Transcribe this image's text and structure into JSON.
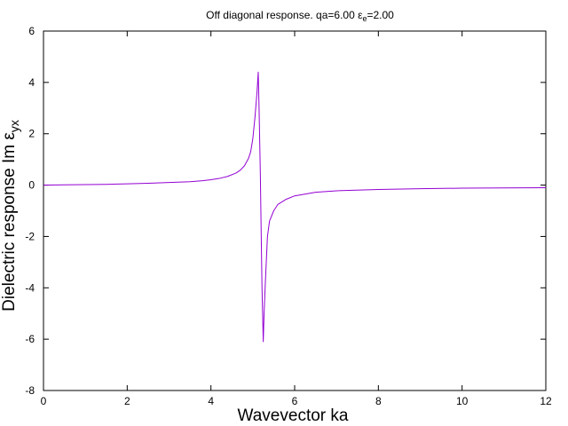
{
  "chart_data": {
    "type": "line",
    "title": {
      "prefix": "Off diagonal response. qa=6.00 ",
      "eps_symbol": "ε",
      "eps_sub": "e",
      "suffix": "=2.00"
    },
    "xlabel": "Wavevector ka",
    "ylabel": {
      "prefix": "Dielectric response Im ",
      "eps_symbol": "ε",
      "sub": "yx"
    },
    "xlim": [
      0,
      12
    ],
    "ylim": [
      -8,
      6
    ],
    "x_ticks": [
      0,
      2,
      4,
      6,
      8,
      10,
      12
    ],
    "y_ticks": [
      -8,
      -6,
      -4,
      -2,
      0,
      2,
      4,
      6
    ],
    "grid": false,
    "series": [
      {
        "color": "#9400d3",
        "x": [
          0,
          0.5,
          1,
          1.5,
          2,
          2.5,
          3,
          3.5,
          3.8,
          4,
          4.2,
          4.4,
          4.6,
          4.7,
          4.8,
          4.9,
          4.95,
          5.0,
          5.05,
          5.1,
          5.13,
          5.15,
          5.18,
          5.2,
          5.22,
          5.25,
          5.27,
          5.3,
          5.35,
          5.4,
          5.5,
          5.6,
          5.8,
          6.0,
          6.5,
          7,
          8,
          9,
          10,
          11,
          12
        ],
        "y": [
          0,
          0.01,
          0.02,
          0.03,
          0.05,
          0.07,
          0.1,
          0.13,
          0.17,
          0.21,
          0.26,
          0.34,
          0.47,
          0.58,
          0.75,
          1.05,
          1.3,
          1.8,
          2.6,
          3.6,
          4.4,
          3.0,
          0.5,
          -1.8,
          -4.0,
          -6.1,
          -5.0,
          -3.8,
          -2.0,
          -1.4,
          -1.0,
          -0.75,
          -0.55,
          -0.42,
          -0.28,
          -0.22,
          -0.17,
          -0.14,
          -0.12,
          -0.11,
          -0.1
        ]
      }
    ]
  }
}
